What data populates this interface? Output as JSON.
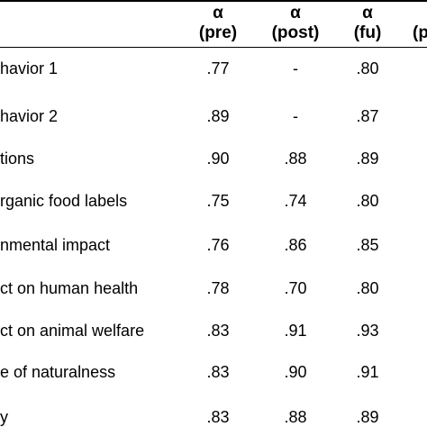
{
  "table": {
    "columns": [
      {
        "symbol": "α",
        "sub": "(pre)"
      },
      {
        "symbol": "α",
        "sub": "(post)"
      },
      {
        "symbol": "α",
        "sub": "(fu)"
      },
      {
        "symbol": "",
        "sub": "(p"
      }
    ],
    "rows": [
      {
        "label": "havior 1",
        "pre": ".77",
        "post": "-",
        "fu": ".80"
      },
      {
        "label": "havior 2",
        "pre": ".89",
        "post": "-",
        "fu": ".87"
      },
      {
        "label": "tions",
        "pre": ".90",
        "post": ".88",
        "fu": ".89"
      },
      {
        "label": "rganic food labels",
        "pre": ".75",
        "post": ".74",
        "fu": ".80"
      },
      {
        "label": "nmental impact",
        "pre": ".76",
        "post": ".86",
        "fu": ".85"
      },
      {
        "label": "ct on human health",
        "pre": ".78",
        "post": ".70",
        "fu": ".80"
      },
      {
        "label": "ct on animal welfare",
        "pre": ".83",
        "post": ".91",
        "fu": ".93"
      },
      {
        "label": "e of naturalness",
        "pre": ".83",
        "post": ".90",
        "fu": ".91"
      },
      {
        "label": "y",
        "pre": ".83",
        "post": ".88",
        "fu": ".89"
      }
    ]
  }
}
